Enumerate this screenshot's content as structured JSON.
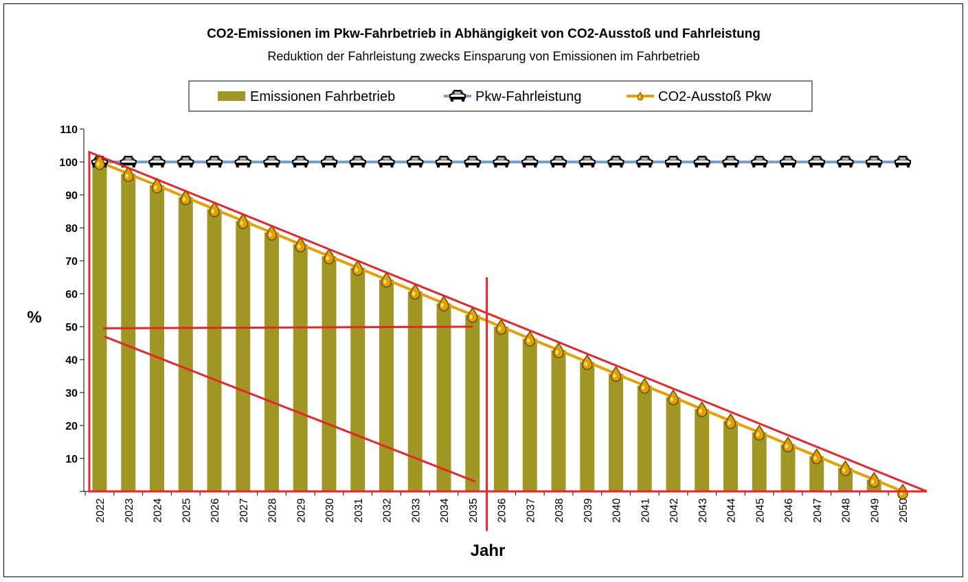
{
  "chart_data": {
    "type": "bar",
    "title": "CO2-Emissionen im Pkw-Fahrbetrieb in Abhängigkeit von CO2-Ausstoß und Fahrleistung",
    "subtitle": "Reduktion der Fahrleistung zwecks Einsparung von Emissionen im Fahrbetrieb",
    "xlabel": "Jahr",
    "ylabel": "%",
    "ylim": [
      0,
      110
    ],
    "yticks": [
      10,
      20,
      30,
      40,
      50,
      60,
      70,
      80,
      90,
      100,
      110
    ],
    "categories": [
      "2022",
      "2023",
      "2024",
      "2025",
      "2026",
      "2027",
      "2028",
      "2029",
      "2030",
      "2031",
      "2032",
      "2033",
      "2034",
      "2035",
      "2036",
      "2037",
      "2038",
      "2039",
      "2040",
      "2041",
      "2042",
      "2043",
      "2044",
      "2045",
      "2046",
      "2047",
      "2048",
      "2049",
      "2050"
    ],
    "legend": [
      "Emissionen Fahrbetrieb",
      "Pkw-Fahrleistung",
      "CO2-Ausstoß Pkw"
    ],
    "legend_position": "top-center",
    "series": [
      {
        "name": "Emissionen Fahrbetrieb",
        "type": "bar",
        "color": "#a09624",
        "values": [
          100,
          96.4,
          92.9,
          89.3,
          85.7,
          82.1,
          78.6,
          75,
          71.4,
          67.9,
          64.3,
          60.7,
          57.1,
          53.6,
          50,
          46.4,
          42.9,
          39.3,
          35.7,
          32.1,
          28.6,
          25,
          21.4,
          17.9,
          14.3,
          10.7,
          7.1,
          3.6,
          0
        ]
      },
      {
        "name": "Pkw-Fahrleistung",
        "type": "line",
        "color": "#729fcf",
        "marker": "car-icon",
        "values": [
          100,
          100,
          100,
          100,
          100,
          100,
          100,
          100,
          100,
          100,
          100,
          100,
          100,
          100,
          100,
          100,
          100,
          100,
          100,
          100,
          100,
          100,
          100,
          100,
          100,
          100,
          100,
          100,
          100
        ]
      },
      {
        "name": "CO2-Ausstoß Pkw",
        "type": "line",
        "color": "#e8a000",
        "marker": "droplet-icon",
        "values": [
          100,
          96.4,
          92.9,
          89.3,
          85.7,
          82.1,
          78.6,
          75,
          71.4,
          67.9,
          64.3,
          60.7,
          57.1,
          53.6,
          50,
          46.4,
          42.9,
          39.3,
          35.7,
          32.1,
          28.6,
          25,
          21.4,
          17.9,
          14.3,
          10.7,
          7.1,
          3.6,
          0
        ]
      }
    ],
    "annotations": {
      "color": "#e8232a",
      "big_triangle": [
        {
          "x": "2022",
          "y": 103
        },
        {
          "x": "2050",
          "y": 0
        },
        {
          "x": "2022",
          "y": 0
        }
      ],
      "vertical_line": {
        "x_between": [
          "2035",
          "2036"
        ],
        "y_range": [
          -12,
          65
        ]
      },
      "horizontal_line": {
        "from": {
          "x": "2022",
          "y": 49.5
        },
        "to": {
          "x": "2035",
          "y": 50
        }
      },
      "diagonal_line": {
        "from": {
          "x": "2022",
          "y": 47
        },
        "to": {
          "x": "2035",
          "y": 3
        }
      }
    }
  }
}
